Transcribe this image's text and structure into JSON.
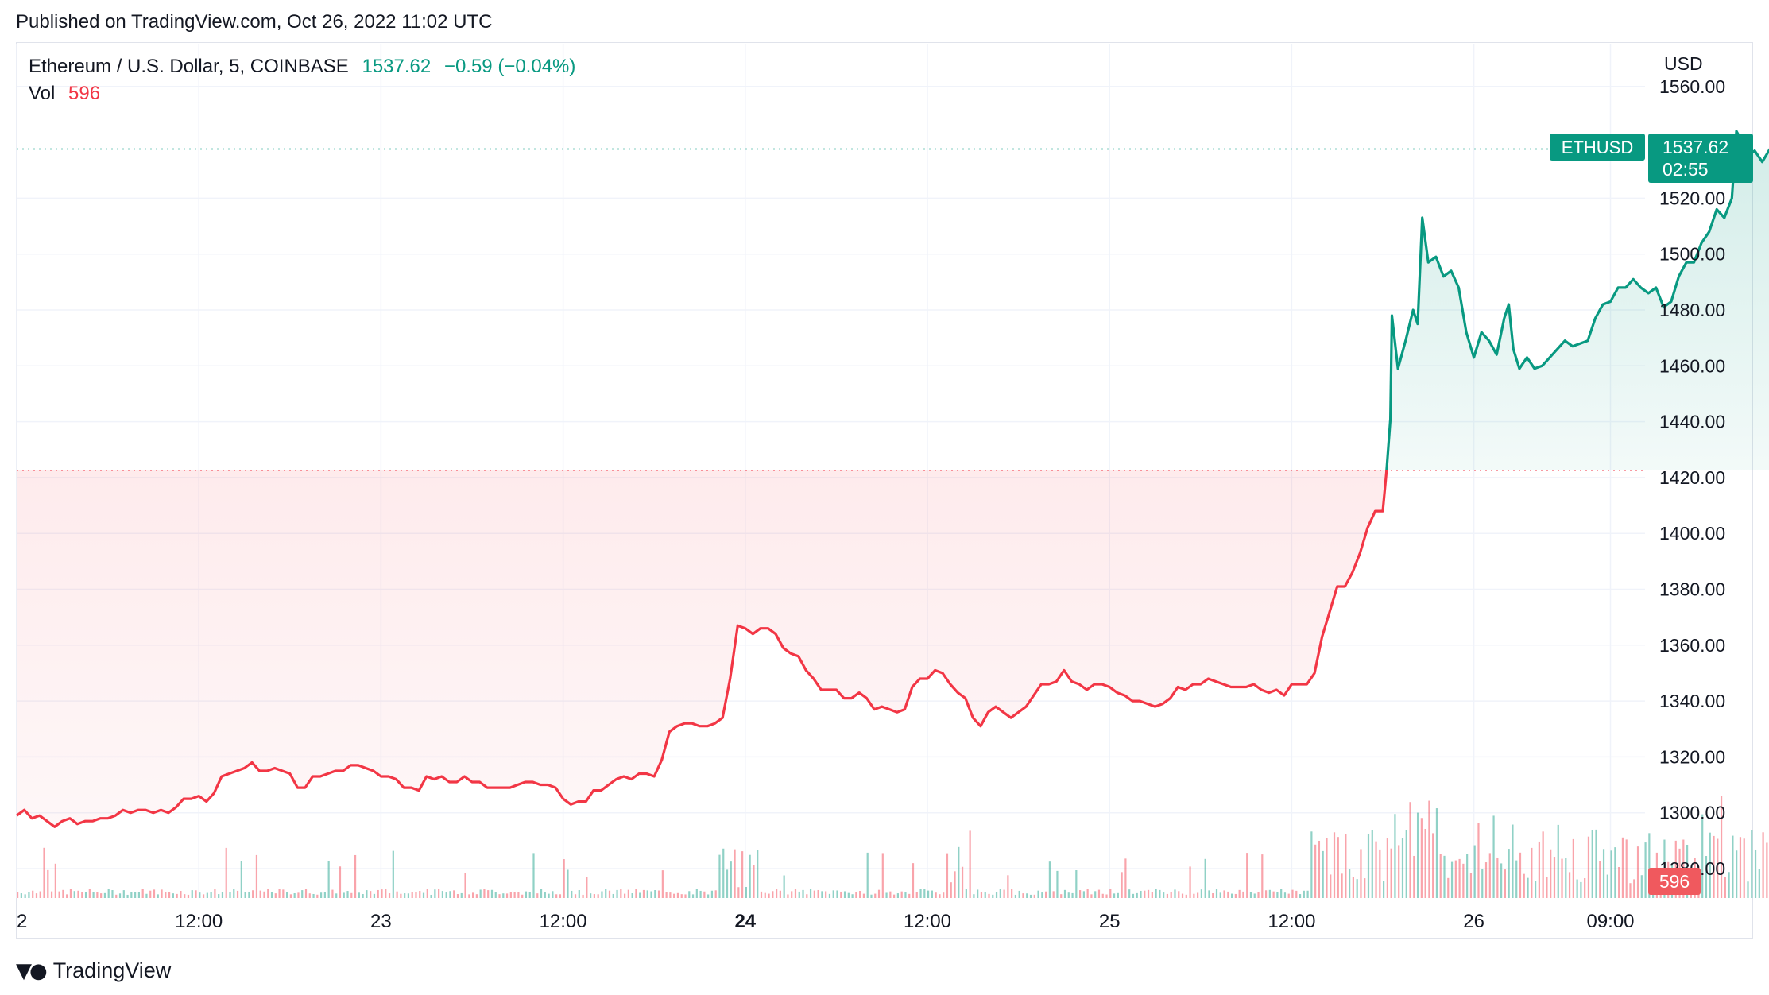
{
  "header": {
    "published": "Published on TradingView.com, Oct 26, 2022 11:02 UTC"
  },
  "legend": {
    "symbol": "Ethereum / U.S. Dollar, 5, COINBASE",
    "last": "1537.62",
    "change": "−0.59 (−0.04%)",
    "vol_label": "Vol",
    "vol_value": "596"
  },
  "axis": {
    "currency": "USD"
  },
  "price_tag": {
    "symbol": "ETHUSD",
    "price": "1537.62",
    "countdown": "02:55"
  },
  "volume_tag": {
    "value": "596"
  },
  "footer": {
    "brand": "TradingView"
  },
  "colors": {
    "up": "#089981",
    "down": "#f23645",
    "grid": "#f0f3fa"
  },
  "chart_data": {
    "type": "line",
    "title": "Ethereum / U.S. Dollar, 5, COINBASE",
    "ylabel": "USD",
    "ylim": [
      1270,
      1560
    ],
    "y_ticks": [
      "1280.00",
      "1300.00",
      "1320.00",
      "1340.00",
      "1360.00",
      "1380.00",
      "1400.00",
      "1420.00",
      "1440.00",
      "1460.00",
      "1480.00",
      "1500.00",
      "1520.00",
      "1560.00"
    ],
    "x_ticks": [
      {
        "label": "2",
        "t": 0
      },
      {
        "label": "12:00",
        "t": 12
      },
      {
        "label": "23",
        "t": 24
      },
      {
        "label": "12:00",
        "t": 36
      },
      {
        "label": "24",
        "t": 48,
        "bold": true
      },
      {
        "label": "12:00",
        "t": 60
      },
      {
        "label": "25",
        "t": 72
      },
      {
        "label": "12:00",
        "t": 84
      },
      {
        "label": "26",
        "t": 96
      },
      {
        "label": "09:00",
        "t": 105
      }
    ],
    "baseline": 1422.6,
    "series": [
      {
        "values": [
          [
            0.0,
            1299
          ],
          [
            0.5,
            1301
          ],
          [
            1.0,
            1298
          ],
          [
            1.5,
            1299
          ],
          [
            2.0,
            1297
          ],
          [
            2.5,
            1295
          ],
          [
            3.0,
            1297
          ],
          [
            3.5,
            1298
          ],
          [
            4.0,
            1296
          ],
          [
            4.5,
            1297
          ],
          [
            5.0,
            1297
          ],
          [
            5.5,
            1298
          ],
          [
            6.0,
            1298
          ],
          [
            6.5,
            1299
          ],
          [
            7.0,
            1301
          ],
          [
            7.5,
            1300
          ],
          [
            8.0,
            1301
          ],
          [
            8.5,
            1301
          ],
          [
            9.0,
            1300
          ],
          [
            9.5,
            1301
          ],
          [
            10.0,
            1300
          ],
          [
            10.5,
            1302
          ],
          [
            11.0,
            1305
          ],
          [
            11.5,
            1305
          ],
          [
            12.0,
            1306
          ],
          [
            12.5,
            1304
          ],
          [
            13.0,
            1307
          ],
          [
            13.5,
            1313
          ],
          [
            14.0,
            1314
          ],
          [
            14.5,
            1315
          ],
          [
            15.0,
            1316
          ],
          [
            15.5,
            1318
          ],
          [
            16.0,
            1315
          ],
          [
            16.5,
            1315
          ],
          [
            17.0,
            1316
          ],
          [
            17.5,
            1315
          ],
          [
            18.0,
            1314
          ],
          [
            18.5,
            1309
          ],
          [
            19.0,
            1309
          ],
          [
            19.5,
            1313
          ],
          [
            20.0,
            1313
          ],
          [
            20.5,
            1314
          ],
          [
            21.0,
            1315
          ],
          [
            21.5,
            1315
          ],
          [
            22.0,
            1317
          ],
          [
            22.5,
            1317
          ],
          [
            23.0,
            1316
          ],
          [
            23.5,
            1315
          ],
          [
            24.0,
            1313
          ],
          [
            24.5,
            1313
          ],
          [
            25.0,
            1312
          ],
          [
            25.5,
            1309
          ],
          [
            26.0,
            1309
          ],
          [
            26.5,
            1308
          ],
          [
            27.0,
            1313
          ],
          [
            27.5,
            1312
          ],
          [
            28.0,
            1313
          ],
          [
            28.5,
            1311
          ],
          [
            29.0,
            1311
          ],
          [
            29.5,
            1313
          ],
          [
            30.0,
            1311
          ],
          [
            30.5,
            1311
          ],
          [
            31.0,
            1309
          ],
          [
            31.5,
            1309
          ],
          [
            32.0,
            1309
          ],
          [
            32.5,
            1309
          ],
          [
            33.0,
            1310
          ],
          [
            33.5,
            1311
          ],
          [
            34.0,
            1311
          ],
          [
            34.5,
            1310
          ],
          [
            35.0,
            1310
          ],
          [
            35.5,
            1309
          ],
          [
            36.0,
            1305
          ],
          [
            36.5,
            1303
          ],
          [
            37.0,
            1304
          ],
          [
            37.5,
            1304
          ],
          [
            38.0,
            1308
          ],
          [
            38.5,
            1308
          ],
          [
            39.0,
            1310
          ],
          [
            39.5,
            1312
          ],
          [
            40.0,
            1313
          ],
          [
            40.5,
            1312
          ],
          [
            41.0,
            1314
          ],
          [
            41.5,
            1314
          ],
          [
            42.0,
            1313
          ],
          [
            42.5,
            1319
          ],
          [
            43.0,
            1329
          ],
          [
            43.5,
            1331
          ],
          [
            44.0,
            1332
          ],
          [
            44.5,
            1332
          ],
          [
            45.0,
            1331
          ],
          [
            45.5,
            1331
          ],
          [
            46.0,
            1332
          ],
          [
            46.5,
            1334
          ],
          [
            47.0,
            1348
          ],
          [
            47.5,
            1367
          ],
          [
            48.0,
            1366
          ],
          [
            48.5,
            1364
          ],
          [
            49.0,
            1366
          ],
          [
            49.5,
            1366
          ],
          [
            50.0,
            1364
          ],
          [
            50.5,
            1359
          ],
          [
            51.0,
            1357
          ],
          [
            51.5,
            1356
          ],
          [
            52.0,
            1351
          ],
          [
            52.5,
            1348
          ],
          [
            53.0,
            1344
          ],
          [
            53.5,
            1344
          ],
          [
            54.0,
            1344
          ],
          [
            54.5,
            1341
          ],
          [
            55.0,
            1341
          ],
          [
            55.5,
            1343
          ],
          [
            56.0,
            1341
          ],
          [
            56.5,
            1337
          ],
          [
            57.0,
            1338
          ],
          [
            57.5,
            1337
          ],
          [
            58.0,
            1336
          ],
          [
            58.5,
            1337
          ],
          [
            59.0,
            1345
          ],
          [
            59.5,
            1348
          ],
          [
            60.0,
            1348
          ],
          [
            60.5,
            1351
          ],
          [
            61.0,
            1350
          ],
          [
            61.5,
            1346
          ],
          [
            62.0,
            1343
          ],
          [
            62.5,
            1341
          ],
          [
            63.0,
            1334
          ],
          [
            63.5,
            1331
          ],
          [
            64.0,
            1336
          ],
          [
            64.5,
            1338
          ],
          [
            65.0,
            1336
          ],
          [
            65.5,
            1334
          ],
          [
            66.0,
            1336
          ],
          [
            66.5,
            1338
          ],
          [
            67.0,
            1342
          ],
          [
            67.5,
            1346
          ],
          [
            68.0,
            1346
          ],
          [
            68.5,
            1347
          ],
          [
            69.0,
            1351
          ],
          [
            69.5,
            1347
          ],
          [
            70.0,
            1346
          ],
          [
            70.5,
            1344
          ],
          [
            71.0,
            1346
          ],
          [
            71.5,
            1346
          ],
          [
            72.0,
            1345
          ],
          [
            72.5,
            1343
          ],
          [
            73.0,
            1342
          ],
          [
            73.5,
            1340
          ],
          [
            74.0,
            1340
          ],
          [
            74.5,
            1339
          ],
          [
            75.0,
            1338
          ],
          [
            75.5,
            1339
          ],
          [
            76.0,
            1341
          ],
          [
            76.5,
            1345
          ],
          [
            77.0,
            1344
          ],
          [
            77.5,
            1346
          ],
          [
            78.0,
            1346
          ],
          [
            78.5,
            1348
          ],
          [
            79.0,
            1347
          ],
          [
            79.5,
            1346
          ],
          [
            80.0,
            1345
          ],
          [
            80.5,
            1345
          ],
          [
            81.0,
            1345
          ],
          [
            81.5,
            1346
          ],
          [
            82.0,
            1344
          ],
          [
            82.5,
            1343
          ],
          [
            83.0,
            1344
          ],
          [
            83.5,
            1342
          ],
          [
            84.0,
            1346
          ],
          [
            84.5,
            1346
          ],
          [
            85.0,
            1346
          ],
          [
            85.5,
            1350
          ],
          [
            86.0,
            1363
          ],
          [
            86.5,
            1372
          ],
          [
            87.0,
            1381
          ],
          [
            87.5,
            1381
          ],
          [
            88.0,
            1386
          ],
          [
            88.5,
            1393
          ],
          [
            89.0,
            1402
          ],
          [
            89.5,
            1408
          ],
          [
            90.0,
            1408
          ],
          [
            90.25,
            1422.6
          ]
        ]
      },
      {
        "values": [
          [
            90.25,
            1422.6
          ],
          [
            90.5,
            1441
          ],
          [
            90.6,
            1478
          ],
          [
            91.0,
            1459
          ],
          [
            91.5,
            1469
          ],
          [
            92.0,
            1480
          ],
          [
            92.3,
            1475
          ],
          [
            92.6,
            1513
          ],
          [
            93.0,
            1497
          ],
          [
            93.5,
            1499
          ],
          [
            94.0,
            1492
          ],
          [
            94.5,
            1494
          ],
          [
            95.0,
            1488
          ],
          [
            95.5,
            1472
          ],
          [
            96.0,
            1463
          ],
          [
            96.5,
            1472
          ],
          [
            97.0,
            1469
          ],
          [
            97.5,
            1464
          ],
          [
            98.0,
            1477
          ],
          [
            98.3,
            1482
          ],
          [
            98.6,
            1466
          ],
          [
            99.0,
            1459
          ],
          [
            99.5,
            1463
          ],
          [
            100.0,
            1459
          ],
          [
            100.5,
            1460
          ],
          [
            101.0,
            1463
          ],
          [
            101.5,
            1466
          ],
          [
            102.0,
            1469
          ],
          [
            102.5,
            1467
          ],
          [
            103.0,
            1468
          ],
          [
            103.5,
            1469
          ],
          [
            104.0,
            1477
          ],
          [
            104.5,
            1482
          ],
          [
            105.0,
            1483
          ],
          [
            105.5,
            1488
          ],
          [
            106.0,
            1488
          ],
          [
            106.5,
            1491
          ],
          [
            107.0,
            1488
          ],
          [
            107.5,
            1486
          ],
          [
            108.0,
            1488
          ],
          [
            108.5,
            1481
          ],
          [
            109.0,
            1483
          ],
          [
            109.5,
            1492
          ],
          [
            110.0,
            1497
          ],
          [
            110.5,
            1497
          ],
          [
            111.0,
            1504
          ],
          [
            111.5,
            1508
          ],
          [
            112.0,
            1516
          ],
          [
            112.5,
            1513
          ],
          [
            113.0,
            1520
          ],
          [
            113.3,
            1544
          ],
          [
            113.6,
            1541
          ],
          [
            114.0,
            1535
          ],
          [
            114.5,
            1537
          ],
          [
            115.0,
            1533
          ],
          [
            115.5,
            1537.62
          ]
        ]
      }
    ]
  }
}
